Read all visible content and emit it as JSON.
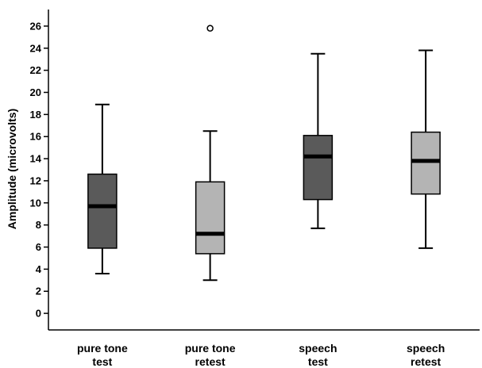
{
  "chart_data": {
    "type": "box",
    "xlabel": "",
    "ylabel": "Amplitude (microvolts)",
    "ylim": [
      -1.5,
      27.5
    ],
    "yticks": [
      0,
      2,
      4,
      6,
      8,
      10,
      12,
      14,
      16,
      18,
      20,
      22,
      24,
      26
    ],
    "grid": false,
    "boxes": [
      {
        "label": [
          "pure tone",
          "test"
        ],
        "whisker_low": 3.6,
        "q1": 5.9,
        "median": 9.7,
        "q3": 12.6,
        "whisker_high": 18.9,
        "outliers": [],
        "fill": "#5a5a5a"
      },
      {
        "label": [
          "pure tone",
          "retest"
        ],
        "whisker_low": 3.0,
        "q1": 5.4,
        "median": 7.2,
        "q3": 11.9,
        "whisker_high": 16.5,
        "outliers": [
          25.8
        ],
        "fill": "#b4b4b4"
      },
      {
        "label": [
          "speech",
          "test"
        ],
        "whisker_low": 7.7,
        "q1": 10.3,
        "median": 14.2,
        "q3": 16.1,
        "whisker_high": 23.5,
        "outliers": [],
        "fill": "#5a5a5a"
      },
      {
        "label": [
          "speech",
          "retest"
        ],
        "whisker_low": 5.9,
        "q1": 10.8,
        "median": 13.8,
        "q3": 16.4,
        "whisker_high": 23.8,
        "outliers": [],
        "fill": "#b4b4b4"
      }
    ]
  }
}
